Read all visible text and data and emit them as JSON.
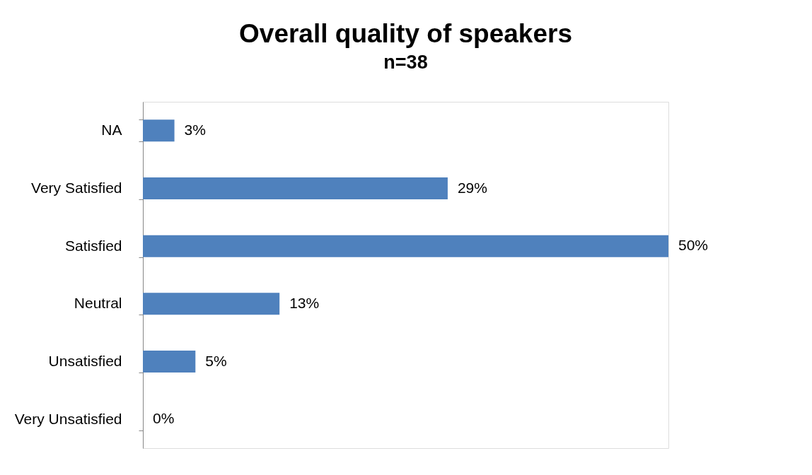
{
  "chart_data": {
    "type": "bar",
    "orientation": "horizontal",
    "title": "Overall quality of speakers",
    "subtitle": "n=38",
    "categories": [
      "NA",
      "Very Satisfied",
      "Satisfied",
      "Neutral",
      "Unsatisfied",
      "Very Unsatisfied"
    ],
    "values": [
      3,
      29,
      50,
      13,
      5,
      0
    ],
    "value_labels": [
      "3%",
      "29%",
      "50%",
      "13%",
      "5%",
      "0%"
    ],
    "color": "#4f81bd"
  }
}
